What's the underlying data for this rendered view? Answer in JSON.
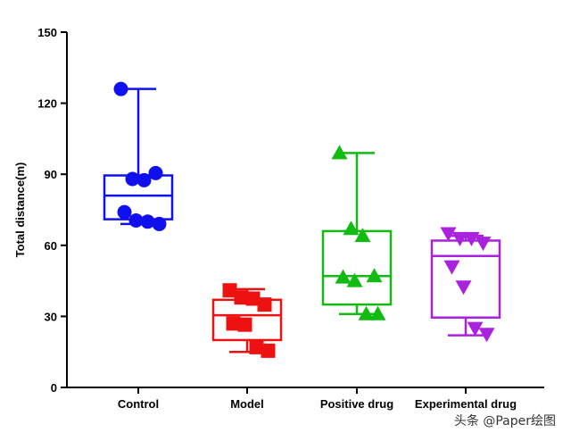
{
  "chart_data": {
    "type": "box",
    "title": "",
    "xlabel": "",
    "ylabel": "Total distance(m)",
    "ylim": [
      0,
      150
    ],
    "yticks": [
      0,
      30,
      60,
      90,
      120,
      150
    ],
    "categories": [
      "Control",
      "Model",
      "Positive drug",
      "Experimental drug"
    ],
    "series": [
      {
        "name": "Control",
        "color": "#1010ee",
        "marker": "circle",
        "box": {
          "min": 69,
          "q1": 71,
          "median": 81,
          "q3": 89.5,
          "max": 126
        },
        "points": [
          126,
          88,
          87.5,
          90.5,
          74,
          70.5,
          70,
          69
        ]
      },
      {
        "name": "Model",
        "color": "#ee1111",
        "marker": "square",
        "box": {
          "min": 15,
          "q1": 20,
          "median": 30.5,
          "q3": 37,
          "max": 41.5
        },
        "points": [
          41,
          38,
          37.5,
          35,
          27,
          26.5,
          17,
          15.5
        ]
      },
      {
        "name": "Positive drug",
        "color": "#11bb11",
        "marker": "triangle-up",
        "box": {
          "min": 31,
          "q1": 35,
          "median": 47,
          "q3": 66,
          "max": 99
        },
        "points": [
          99,
          67,
          64,
          47,
          46.5,
          45,
          31,
          31
        ]
      },
      {
        "name": "Experimental drug",
        "color": "#aa22dd",
        "marker": "triangle-down",
        "box": {
          "min": 22,
          "q1": 29.5,
          "median": 55.5,
          "q3": 62,
          "max": 64
        },
        "points": [
          65,
          63,
          63,
          61,
          51,
          42.5,
          25,
          22.5
        ]
      }
    ]
  },
  "watermark": "头条 @Paper绘图"
}
